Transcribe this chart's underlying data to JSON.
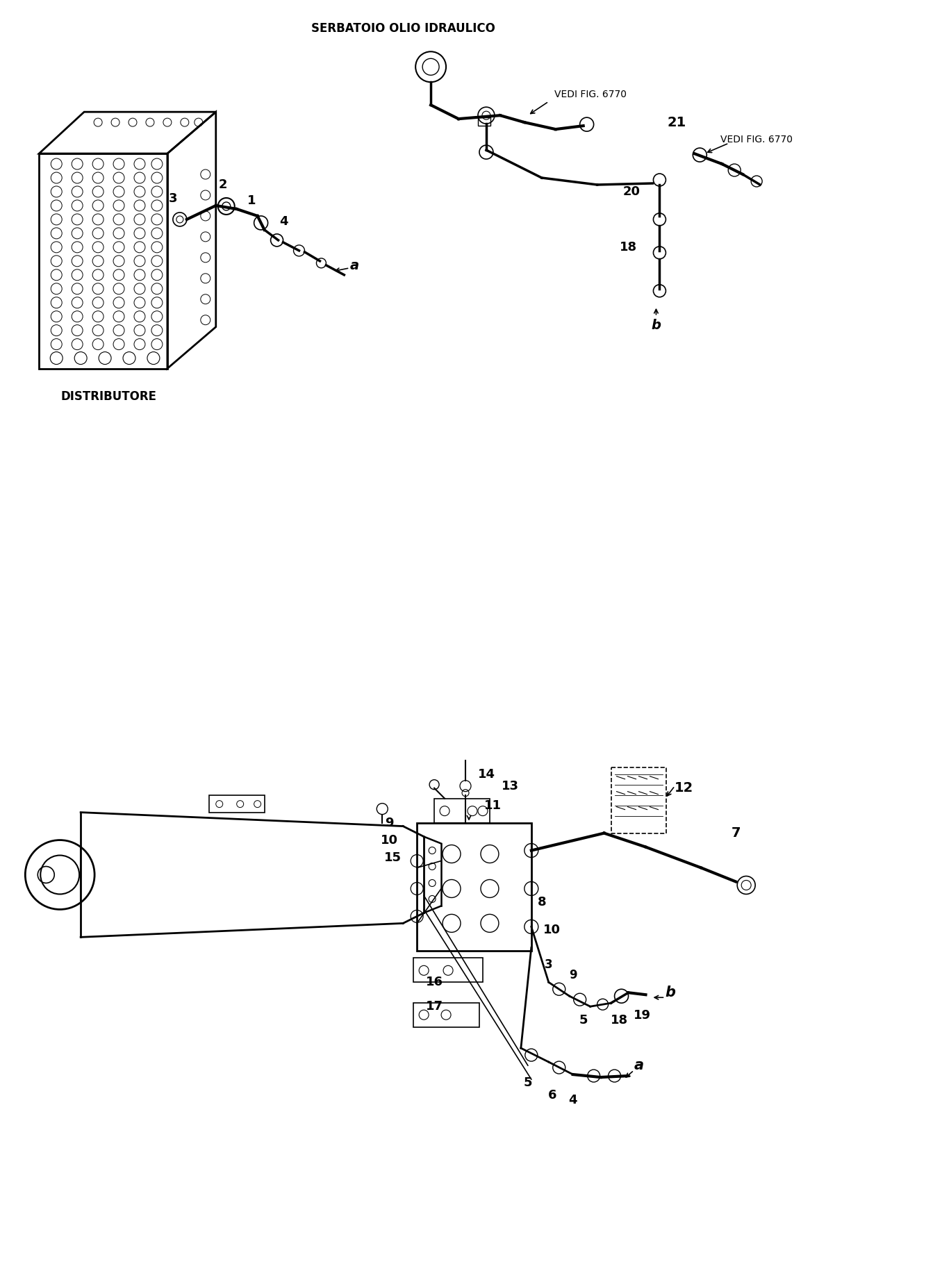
{
  "bg_color": "#ffffff",
  "fig_width": 13.56,
  "fig_height": 18.43,
  "dpi": 100,
  "title_text": "SERBATOIO OLIO IDRAULICO",
  "label_distributore": "DISTRIBUTORE",
  "label_vedi_6770_1": "VEDI FIG. 6770",
  "label_vedi_6770_2": "VEDI FIG. 6770",
  "line_color": "#000000",
  "text_color": "#000000"
}
